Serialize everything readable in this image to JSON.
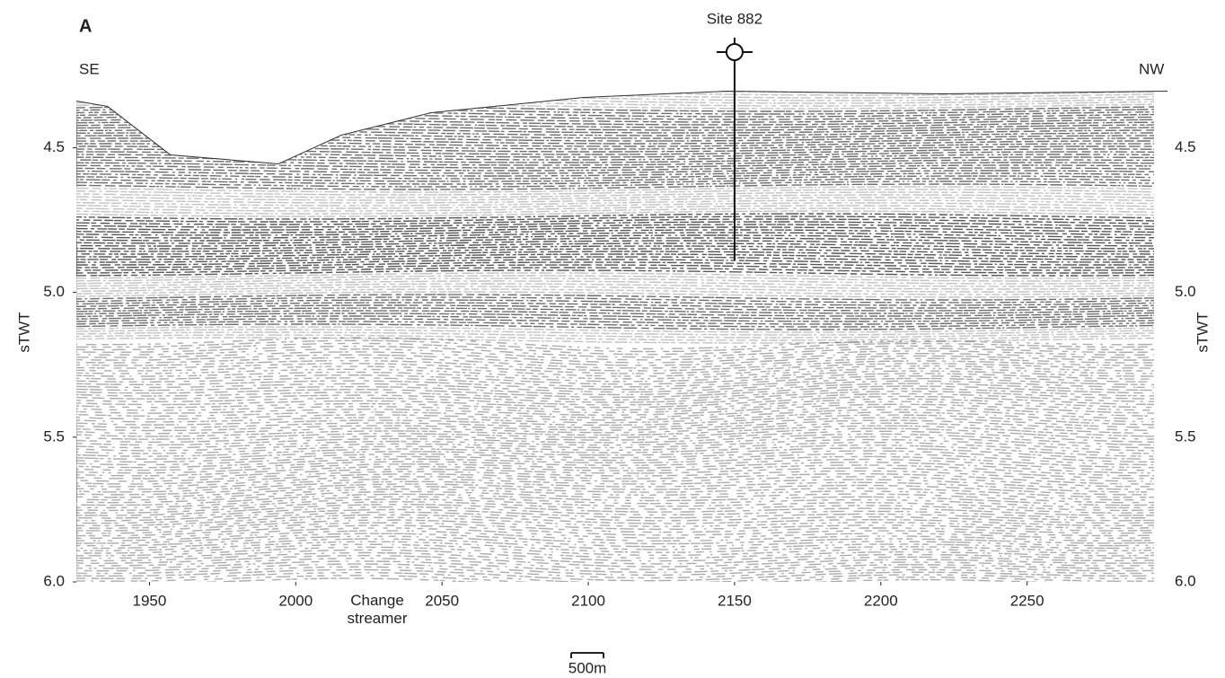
{
  "panel": "A",
  "site": "Site 882",
  "left_label": "SE",
  "right_label": "NW",
  "y_axis_label": "sTWT",
  "x_axis": {
    "lim": [
      1925,
      2298
    ],
    "ticks": [
      1950,
      2000,
      2050,
      2100,
      2150,
      2200,
      2250
    ],
    "site_position": 2150
  },
  "y_axis": {
    "lim": [
      4.3,
      6.0
    ],
    "ticks": [
      {
        "value": 4.5,
        "label": "4.5"
      },
      {
        "value": 5.0,
        "label": "5.0"
      },
      {
        "value": 5.5,
        "label": "5.5"
      },
      {
        "value": 6.0,
        "label": "6.0"
      }
    ]
  },
  "note": "Change streamer",
  "scale_bar": "500m"
}
